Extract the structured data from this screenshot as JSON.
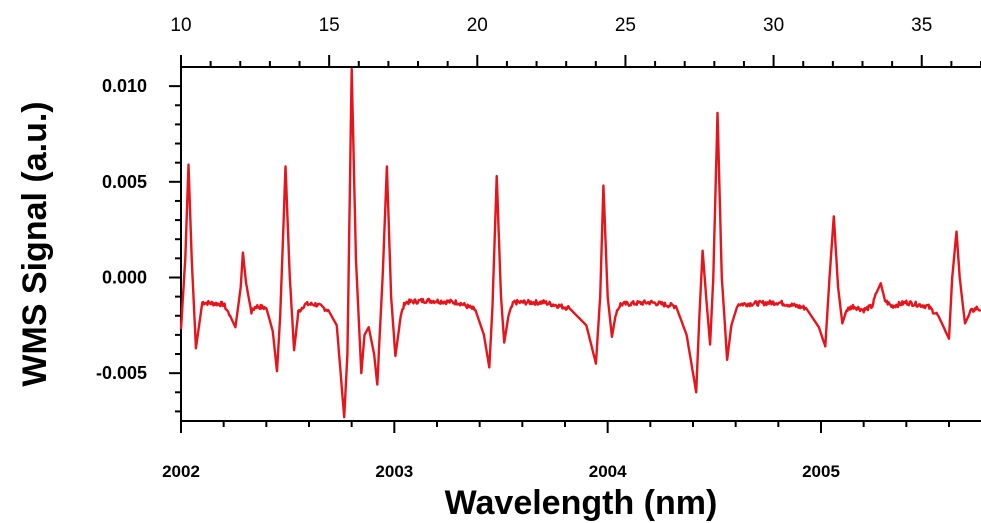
{
  "chart_data": {
    "type": "line",
    "title": "",
    "xlabel": "Wavelength (nm)",
    "ylabel": "WMS Signal (a.u.)",
    "xlim": [
      2002.0,
      2005.75
    ],
    "ylim": [
      -0.0075,
      0.011
    ],
    "x_ticks": [
      2002,
      2003,
      2004,
      2005
    ],
    "x_tick_labels": [
      "2002",
      "2003",
      "2004",
      "2005"
    ],
    "y_ticks": [
      0.01,
      0.005,
      0.0,
      -0.005
    ],
    "y_tick_labels": [
      "0.010",
      "0.005",
      "0.000",
      "-0.005"
    ],
    "top_axis": {
      "xlim": [
        10,
        37
      ],
      "ticks": [
        10,
        15,
        20,
        25,
        30,
        35
      ],
      "tick_labels": [
        "10",
        "15",
        "20",
        "25",
        "30",
        "35"
      ]
    },
    "grid": false,
    "line_color": "#e8141b",
    "series": [
      {
        "baseline": -0.0013,
        "points": [
          [
            2002.0,
            -0.0027
          ],
          [
            2002.02,
            0.001
          ],
          [
            2002.035,
            0.0059
          ],
          [
            2002.05,
            0.001
          ],
          [
            2002.07,
            -0.0037
          ],
          [
            2002.085,
            -0.0025
          ],
          [
            2002.1,
            -0.0013
          ],
          [
            2002.2,
            -0.0014
          ],
          [
            2002.23,
            -0.002
          ],
          [
            2002.255,
            -0.0026
          ],
          [
            2002.28,
            -0.0005
          ],
          [
            2002.29,
            0.0013
          ],
          [
            2002.305,
            -0.0003
          ],
          [
            2002.33,
            -0.0018
          ],
          [
            2002.35,
            -0.0015
          ],
          [
            2002.4,
            -0.0016
          ],
          [
            2002.43,
            -0.0028
          ],
          [
            2002.45,
            -0.0049
          ],
          [
            2002.465,
            -0.002
          ],
          [
            2002.49,
            0.0058
          ],
          [
            2002.51,
            0.0
          ],
          [
            2002.53,
            -0.0038
          ],
          [
            2002.55,
            -0.0018
          ],
          [
            2002.58,
            -0.0014
          ],
          [
            2002.63,
            -0.0014
          ],
          [
            2002.69,
            -0.0017
          ],
          [
            2002.73,
            -0.0025
          ],
          [
            2002.765,
            -0.0073
          ],
          [
            2002.78,
            -0.004
          ],
          [
            2002.8,
            0.0109
          ],
          [
            2002.82,
            0.001
          ],
          [
            2002.845,
            -0.005
          ],
          [
            2002.86,
            -0.003
          ],
          [
            2002.88,
            -0.0026
          ],
          [
            2002.905,
            -0.004
          ],
          [
            2002.92,
            -0.0056
          ],
          [
            2002.945,
            0.0
          ],
          [
            2002.965,
            0.0058
          ],
          [
            2002.985,
            -0.001
          ],
          [
            2003.005,
            -0.0041
          ],
          [
            2003.03,
            -0.002
          ],
          [
            2003.05,
            -0.0013
          ],
          [
            2003.15,
            -0.0012
          ],
          [
            2003.3,
            -0.0013
          ],
          [
            2003.38,
            -0.0017
          ],
          [
            2003.42,
            -0.003
          ],
          [
            2003.445,
            -0.0047
          ],
          [
            2003.46,
            -0.0015
          ],
          [
            2003.48,
            0.0053
          ],
          [
            2003.5,
            -0.001
          ],
          [
            2003.515,
            -0.0034
          ],
          [
            2003.535,
            -0.002
          ],
          [
            2003.56,
            -0.0013
          ],
          [
            2003.7,
            -0.0013
          ],
          [
            2003.82,
            -0.0016
          ],
          [
            2003.9,
            -0.0025
          ],
          [
            2003.945,
            -0.0045
          ],
          [
            2003.965,
            -0.001
          ],
          [
            2003.98,
            0.0048
          ],
          [
            2004.0,
            -0.001
          ],
          [
            2004.02,
            -0.0031
          ],
          [
            2004.04,
            -0.0018
          ],
          [
            2004.06,
            -0.0014
          ],
          [
            2004.2,
            -0.0013
          ],
          [
            2004.32,
            -0.0015
          ],
          [
            2004.37,
            -0.003
          ],
          [
            2004.415,
            -0.006
          ],
          [
            2004.43,
            -0.002
          ],
          [
            2004.445,
            0.0014
          ],
          [
            2004.465,
            -0.0015
          ],
          [
            2004.48,
            -0.0035
          ],
          [
            2004.495,
            0.0
          ],
          [
            2004.515,
            0.0086
          ],
          [
            2004.535,
            0.0
          ],
          [
            2004.56,
            -0.0043
          ],
          [
            2004.58,
            -0.0025
          ],
          [
            2004.61,
            -0.0014
          ],
          [
            2004.8,
            -0.0013
          ],
          [
            2004.93,
            -0.0016
          ],
          [
            2004.99,
            -0.0026
          ],
          [
            2005.02,
            -0.0036
          ],
          [
            2005.04,
            0.0
          ],
          [
            2005.06,
            0.0032
          ],
          [
            2005.08,
            -0.0005
          ],
          [
            2005.1,
            -0.0024
          ],
          [
            2005.12,
            -0.0017
          ],
          [
            2005.15,
            -0.0015
          ],
          [
            2005.2,
            -0.0017
          ],
          [
            2005.24,
            -0.0015
          ],
          [
            2005.26,
            -0.0008
          ],
          [
            2005.28,
            -0.0003
          ],
          [
            2005.3,
            -0.0012
          ],
          [
            2005.33,
            -0.0015
          ],
          [
            2005.4,
            -0.0013
          ],
          [
            2005.5,
            -0.0015
          ],
          [
            2005.55,
            -0.002
          ],
          [
            2005.6,
            -0.0032
          ],
          [
            2005.615,
            0.0
          ],
          [
            2005.635,
            0.0024
          ],
          [
            2005.65,
            0.0
          ],
          [
            2005.675,
            -0.0024
          ],
          [
            2005.7,
            -0.0018
          ],
          [
            2005.73,
            -0.0016
          ],
          [
            2005.75,
            -0.0017
          ]
        ]
      }
    ]
  }
}
